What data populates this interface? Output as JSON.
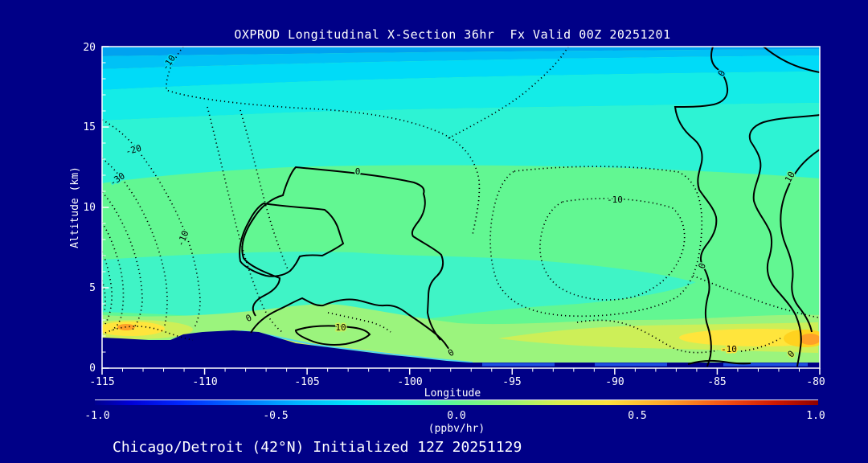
{
  "window": {
    "background": "#000087"
  },
  "title": "OXPROD Longitudinal X-Section 36hr  Fx Valid 00Z 20251201",
  "caption": "Chicago/Detroit (42°N) Initialized 12Z 20251129",
  "axes": {
    "y_label": "Altitude (km)",
    "y_ticks": [
      "20",
      "15",
      "10",
      "5",
      "0"
    ],
    "x_label": "Longitude",
    "x_ticks": [
      "-115",
      "-110",
      "-105",
      "-100",
      "-95",
      "-90",
      "-85",
      "-80"
    ]
  },
  "colorbar": {
    "tick_labels": [
      "-1.0",
      "-0.5",
      "0.0",
      "0.5",
      "1.0"
    ],
    "units": "(ppbv/hr)"
  },
  "contours": {
    "labels": [
      {
        "text": "-10"
      },
      {
        "text": "-20"
      },
      {
        "text": "-30"
      },
      {
        "text": "-10"
      },
      {
        "text": "0"
      },
      {
        "text": "-10"
      },
      {
        "text": "0"
      },
      {
        "text": "10"
      },
      {
        "text": "0"
      },
      {
        "text": "0"
      },
      {
        "text": "10"
      },
      {
        "text": "0"
      },
      {
        "text": "-10"
      },
      {
        "text": "0"
      }
    ]
  },
  "chart_data": {
    "type": "heatmap",
    "title": "OXPROD Longitudinal X-Section 36hr  Fx Valid 00Z 20251201",
    "subtitle": "Chicago/Detroit (42°N) Initialized 12Z 20251129",
    "variable": "OXPROD (net ozone production rate)",
    "units": "ppbv/hr",
    "xlabel": "Longitude",
    "ylabel": "Altitude (km)",
    "xlim": [
      -115,
      -80
    ],
    "ylim": [
      0,
      20
    ],
    "colorbar": {
      "min": -1.0,
      "max": 1.0,
      "ticks": [
        -1.0,
        -0.5,
        0.0,
        0.5,
        1.0
      ],
      "label": "(ppbv/hr)"
    },
    "fill_levels": [
      {
        "color": "#00A2F0",
        "approx_value": -0.55,
        "where": "top of plot ~19-20 km"
      },
      {
        "color": "#00C2F6",
        "approx_value": -0.45,
        "where": "~18-19 km"
      },
      {
        "color": "#00DBF8",
        "approx_value": -0.4,
        "where": "~17-18 km"
      },
      {
        "color": "#14ECE7",
        "approx_value": -0.3,
        "where": "~15-17 km"
      },
      {
        "color": "#2DF3D4",
        "approx_value": -0.25,
        "where": "~12-15 km band"
      },
      {
        "color": "#3FF4C6",
        "approx_value": -0.2,
        "where": "mid-level band ~3-6 km"
      },
      {
        "color": "#62F792",
        "approx_value": -0.05,
        "where": "bulk troposphere"
      },
      {
        "color": "#9BF47D",
        "approx_value": 0.1,
        "where": "near-surface layer"
      },
      {
        "color": "#CDEF58",
        "approx_value": 0.2,
        "where": "boundary layer streaks"
      },
      {
        "color": "#FFE53C",
        "approx_value": 0.45,
        "where": "surface hotspots"
      },
      {
        "color": "#FFA028",
        "approx_value": 0.6,
        "where": "hotspot cores"
      },
      {
        "color": "#000087",
        "approx_value": null,
        "where": "below-terrain mask"
      }
    ],
    "contour_lines": {
      "dotted_negative_levels": [
        -30,
        -20,
        -10
      ],
      "solid_levels": [
        0,
        10
      ],
      "interval": 10
    },
    "features": [
      {
        "name": "upper-level negative layer",
        "description": "blue/cyan fill above ~14 km at all longitudes, ~-0.25 to -0.55 ppbv/hr"
      },
      {
        "name": "closed -10 dotted contour",
        "longitude": -91,
        "altitude_km": 8
      },
      {
        "name": "dotted -10/-20/-30 fan",
        "description": "tightly packed dotted contours near -115 to -110 between 2 and 15 km"
      },
      {
        "name": "solid 0/10 contour complex",
        "longitude_range": [
          -107,
          -99
        ],
        "altitude_km_range": [
          2,
          12
        ]
      },
      {
        "name": "solid 0/10 contour complex east",
        "longitude_range": [
          -84,
          -80
        ],
        "altitude_km_range": [
          0,
          20
        ]
      },
      {
        "name": "surface production max west",
        "longitude": -113.8,
        "altitude_km": 2.3,
        "approx_value": 0.6
      },
      {
        "name": "surface production max east",
        "longitude": -81,
        "altitude_km": 1.6,
        "approx_value": 0.65
      },
      {
        "name": "terrain silhouette",
        "description": "elevated ground ~2 km between -109 and -100, sloping to near 0 km east of -97"
      }
    ]
  }
}
